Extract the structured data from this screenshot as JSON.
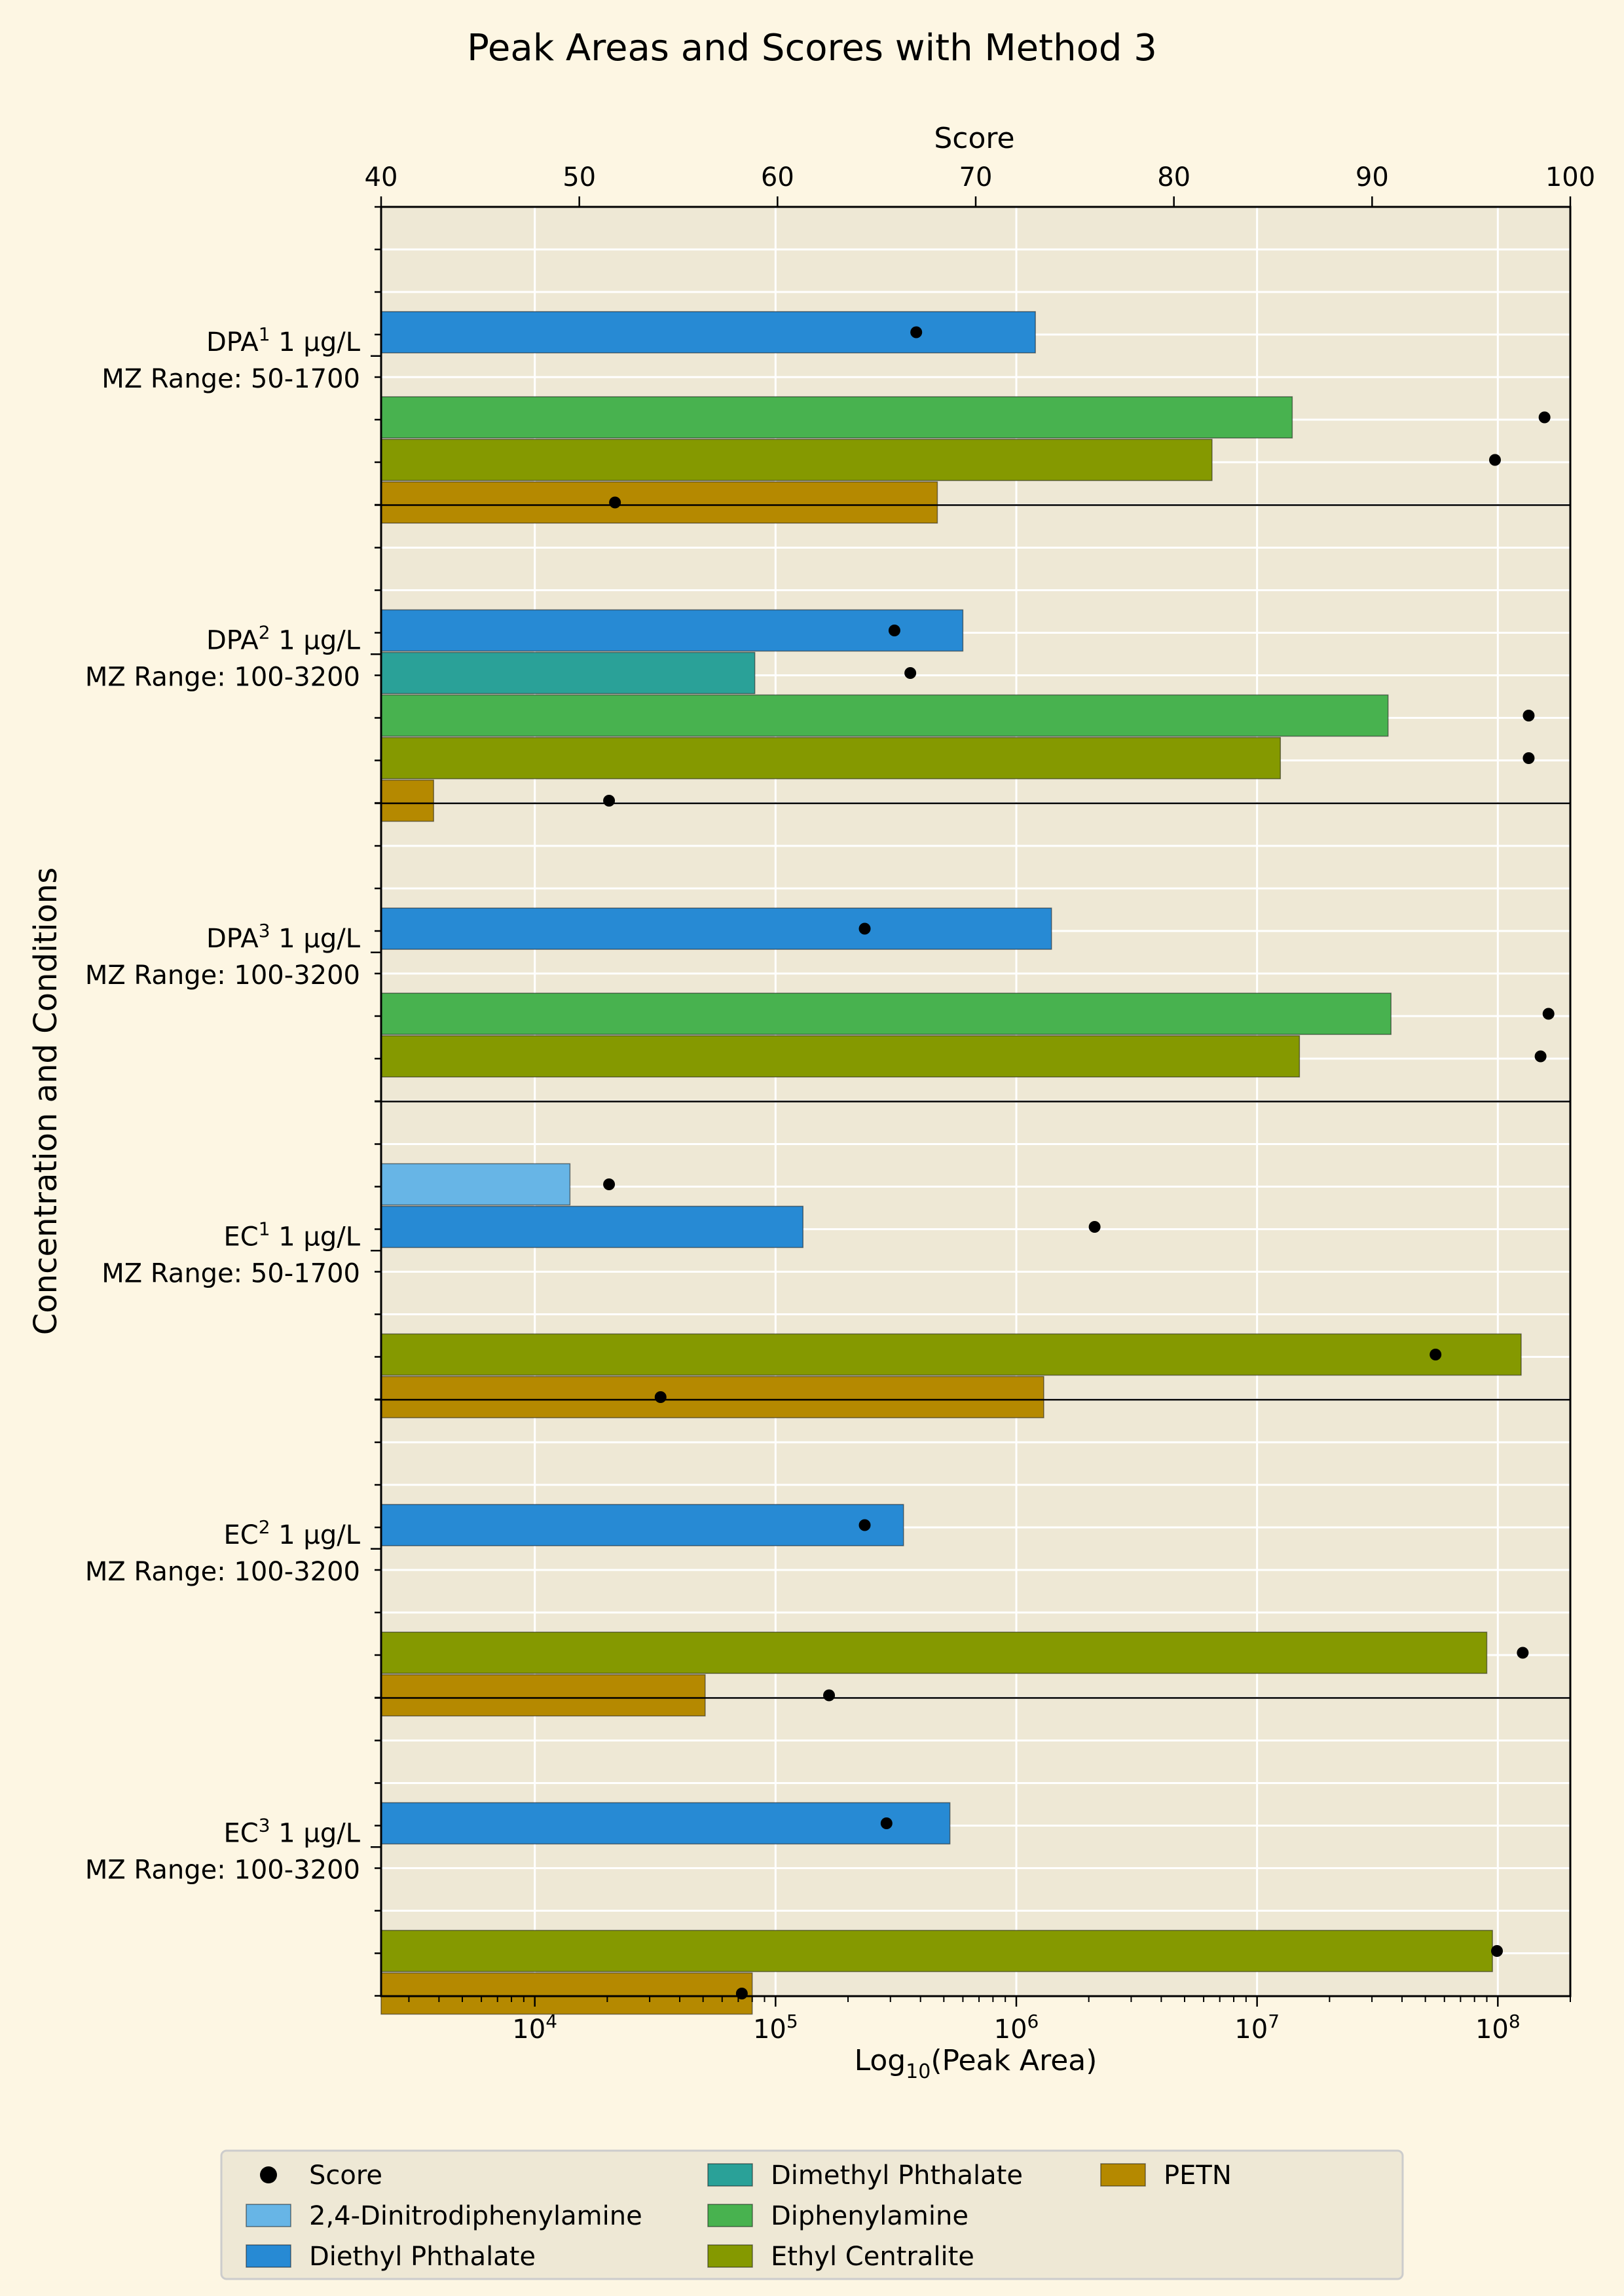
{
  "chart_data": {
    "type": "bar",
    "orientation": "horizontal",
    "title": "Peak Areas and Scores with Method 3",
    "xlabel_bottom": "Log",
    "xlabel_bottom_sub": "10",
    "xlabel_bottom_rest": "(Peak Area)",
    "xlabel_top": "Score",
    "ylabel": "Concentration and Conditions",
    "x_scale": "log",
    "xlim": [
      2300,
      200000000
    ],
    "x_ticks": [
      {
        "value": 10000,
        "base": "10",
        "exp": "4"
      },
      {
        "value": 100000,
        "base": "10",
        "exp": "5"
      },
      {
        "value": 1000000,
        "base": "10",
        "exp": "6"
      },
      {
        "value": 10000000,
        "base": "10",
        "exp": "7"
      },
      {
        "value": 100000000,
        "base": "10",
        "exp": "8"
      }
    ],
    "score_lim": [
      40,
      100
    ],
    "score_ticks": [
      "40",
      "50",
      "60",
      "70",
      "80",
      "90",
      "100"
    ],
    "grid": true,
    "legend_position": "bottom-center",
    "series": [
      {
        "name": "2,4-Dinitrodiphenylamine",
        "color": "#67b5e6"
      },
      {
        "name": "Diethyl Phthalate",
        "color": "#278ad4"
      },
      {
        "name": "Dimethyl Phthalate",
        "color": "#2aa198"
      },
      {
        "name": "Diphenylamine",
        "color": "#48b24f"
      },
      {
        "name": "Ethyl Centralite",
        "color": "#859900"
      },
      {
        "name": "PETN",
        "color": "#b58900"
      }
    ],
    "score_label": "Score",
    "groups": [
      {
        "name": "DPA",
        "sup": "1",
        "conc": " 1 μg/L",
        "range": "MZ Range: 50-1700",
        "bars": [
          {
            "series": 1,
            "area": 1200000,
            "score": 67
          },
          {
            "series": 3,
            "area": 14000000,
            "score": 98.7
          },
          {
            "series": 4,
            "area": 6500000,
            "score": 96.2
          },
          {
            "series": 5,
            "area": 470000,
            "score": 51.8
          }
        ]
      },
      {
        "name": "DPA",
        "sup": "2",
        "conc": " 1 μg/L",
        "range": "MZ Range: 100-3200",
        "bars": [
          {
            "series": 1,
            "area": 600000,
            "score": 65.9
          },
          {
            "series": 2,
            "area": 82000,
            "score": 66.7
          },
          {
            "series": 3,
            "area": 35000000,
            "score": 97.9
          },
          {
            "series": 4,
            "area": 12500000,
            "score": 97.9
          },
          {
            "series": 5,
            "area": 3800,
            "score": 51.5
          }
        ]
      },
      {
        "name": "DPA",
        "sup": "3",
        "conc": " 1 μg/L",
        "range": "MZ Range: 100-3200",
        "bars": [
          {
            "series": 1,
            "area": 1400000,
            "score": 64.4
          },
          {
            "series": 3,
            "area": 36000000,
            "score": 98.9
          },
          {
            "series": 4,
            "area": 15000000,
            "score": 98.5
          }
        ]
      },
      {
        "name": "EC",
        "sup": "1",
        "conc": " 1 μg/L",
        "range": "MZ Range: 50-1700",
        "bars": [
          {
            "series": 0,
            "area": 14000,
            "score": 51.5
          },
          {
            "series": 1,
            "area": 130000,
            "score": 76
          },
          {
            "series": 4,
            "area": 125000000,
            "score": 93.2
          },
          {
            "series": 5,
            "area": 1300000,
            "score": 54.1
          }
        ]
      },
      {
        "name": "EC",
        "sup": "2",
        "conc": " 1 μg/L",
        "range": "MZ Range: 100-3200",
        "bars": [
          {
            "series": 1,
            "area": 340000,
            "score": 64.4
          },
          {
            "series": 4,
            "area": 90000000,
            "score": 97.6
          },
          {
            "series": 5,
            "area": 51000,
            "score": 62.6
          }
        ]
      },
      {
        "name": "EC",
        "sup": "3",
        "conc": " 1 μg/L",
        "range": "MZ Range: 100-3200",
        "bars": [
          {
            "series": 1,
            "area": 530000,
            "score": 65.5
          },
          {
            "series": 4,
            "area": 95000000,
            "score": 96.3
          },
          {
            "series": 5,
            "area": 80000,
            "score": 58.2
          }
        ]
      }
    ]
  }
}
